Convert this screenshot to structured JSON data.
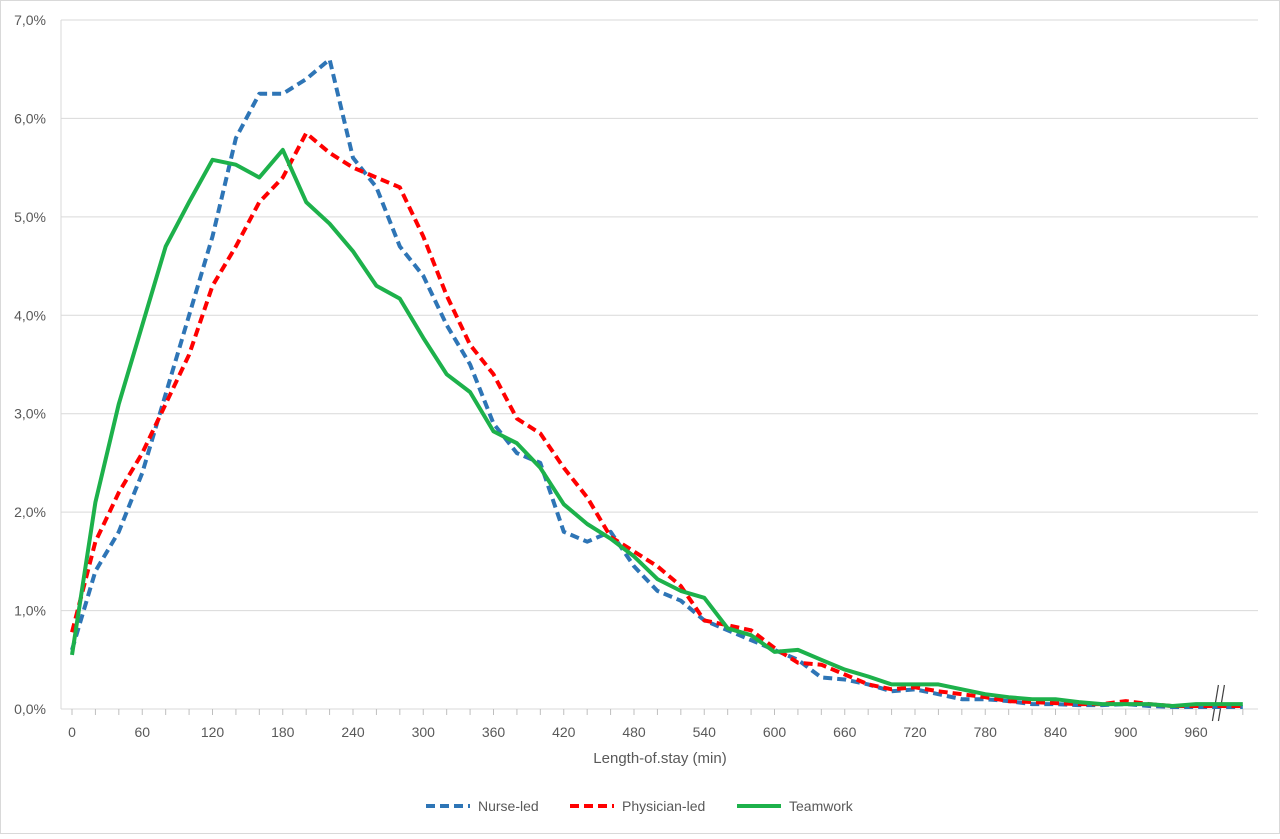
{
  "chart_data": {
    "type": "line",
    "title": "",
    "xlabel": "Length-of.stay (min)",
    "ylabel": "",
    "xlim": [
      0,
      1000
    ],
    "ylim": [
      0,
      7
    ],
    "x_ticks": [
      0,
      60,
      120,
      180,
      240,
      300,
      360,
      420,
      480,
      540,
      600,
      660,
      720,
      780,
      840,
      900,
      960
    ],
    "x_tick_labels": [
      "0",
      "60",
      "120",
      "180",
      "240",
      "300",
      "360",
      "420",
      "480",
      "540",
      "600",
      "660",
      "720",
      "780",
      "840",
      "900",
      "960"
    ],
    "y_ticks": [
      0,
      1,
      2,
      3,
      4,
      5,
      6,
      7
    ],
    "y_tick_labels": [
      "0,0%",
      "1,0%",
      "2,0%",
      "3,0%",
      "4,0%",
      "5,0%",
      "6,0%",
      "7,0%"
    ],
    "grid": "horizontal",
    "axis_break": "x-axis near 980",
    "legend_position": "bottom",
    "x": [
      0,
      20,
      40,
      60,
      80,
      100,
      120,
      140,
      160,
      180,
      200,
      220,
      240,
      260,
      280,
      300,
      320,
      340,
      360,
      380,
      400,
      420,
      440,
      460,
      480,
      500,
      520,
      540,
      560,
      580,
      600,
      620,
      640,
      660,
      680,
      700,
      720,
      740,
      760,
      780,
      800,
      820,
      840,
      860,
      880,
      900,
      920,
      940,
      960,
      980,
      1000
    ],
    "series": [
      {
        "name": "Nurse-led",
        "color": "#2E75B6",
        "dash": "dashed",
        "values": [
          0.6,
          1.4,
          1.8,
          2.4,
          3.2,
          4.0,
          4.8,
          5.8,
          6.25,
          6.25,
          6.4,
          6.6,
          5.6,
          5.3,
          4.7,
          4.4,
          3.9,
          3.5,
          2.9,
          2.6,
          2.5,
          1.8,
          1.7,
          1.8,
          1.45,
          1.2,
          1.1,
          0.9,
          0.8,
          0.7,
          0.6,
          0.5,
          0.32,
          0.3,
          0.25,
          0.18,
          0.2,
          0.15,
          0.1,
          0.1,
          0.08,
          0.05,
          0.05,
          0.04,
          0.04,
          0.05,
          0.03,
          0.02,
          0.02,
          0.02,
          0.02
        ]
      },
      {
        "name": "Physician-led",
        "color": "#FF0000",
        "dash": "dashed",
        "values": [
          0.78,
          1.7,
          2.2,
          2.6,
          3.1,
          3.6,
          4.3,
          4.7,
          5.15,
          5.4,
          5.85,
          5.65,
          5.5,
          5.4,
          5.3,
          4.8,
          4.2,
          3.7,
          3.4,
          2.95,
          2.8,
          2.45,
          2.15,
          1.75,
          1.6,
          1.45,
          1.25,
          0.9,
          0.85,
          0.8,
          0.62,
          0.47,
          0.45,
          0.35,
          0.25,
          0.2,
          0.22,
          0.18,
          0.15,
          0.12,
          0.08,
          0.07,
          0.06,
          0.05,
          0.05,
          0.08,
          0.05,
          0.03,
          0.03,
          0.03,
          0.03
        ]
      },
      {
        "name": "Teamwork",
        "color": "#1DB14B",
        "dash": "solid",
        "values": [
          0.55,
          2.1,
          3.1,
          3.9,
          4.7,
          5.15,
          5.58,
          5.53,
          5.4,
          5.68,
          5.15,
          4.93,
          4.65,
          4.3,
          4.17,
          3.77,
          3.4,
          3.22,
          2.82,
          2.7,
          2.45,
          2.08,
          1.88,
          1.73,
          1.55,
          1.32,
          1.2,
          1.13,
          0.82,
          0.75,
          0.58,
          0.6,
          0.5,
          0.4,
          0.33,
          0.25,
          0.25,
          0.25,
          0.2,
          0.15,
          0.12,
          0.1,
          0.1,
          0.07,
          0.05,
          0.05,
          0.05,
          0.03,
          0.05,
          0.05,
          0.05
        ]
      }
    ]
  }
}
